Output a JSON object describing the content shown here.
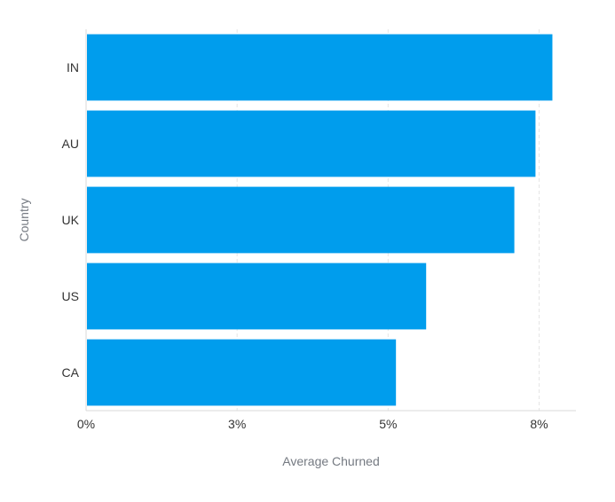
{
  "chart_data": {
    "type": "bar",
    "orientation": "horizontal",
    "categories": [
      "IN",
      "AU",
      "UK",
      "US",
      "CA"
    ],
    "values": [
      7.72,
      7.44,
      7.09,
      5.63,
      5.13
    ],
    "xlabel": "Average Churned",
    "ylabel": "Country",
    "xlim": [
      0,
      8.11
    ],
    "x_ticks": [
      {
        "value": 0,
        "label": "0%"
      },
      {
        "value": 2.5,
        "label": "3%"
      },
      {
        "value": 5.0,
        "label": "5%"
      },
      {
        "value": 7.5,
        "label": "8%"
      }
    ],
    "grid": "vertical dashed",
    "bar_color": "#009ded"
  }
}
